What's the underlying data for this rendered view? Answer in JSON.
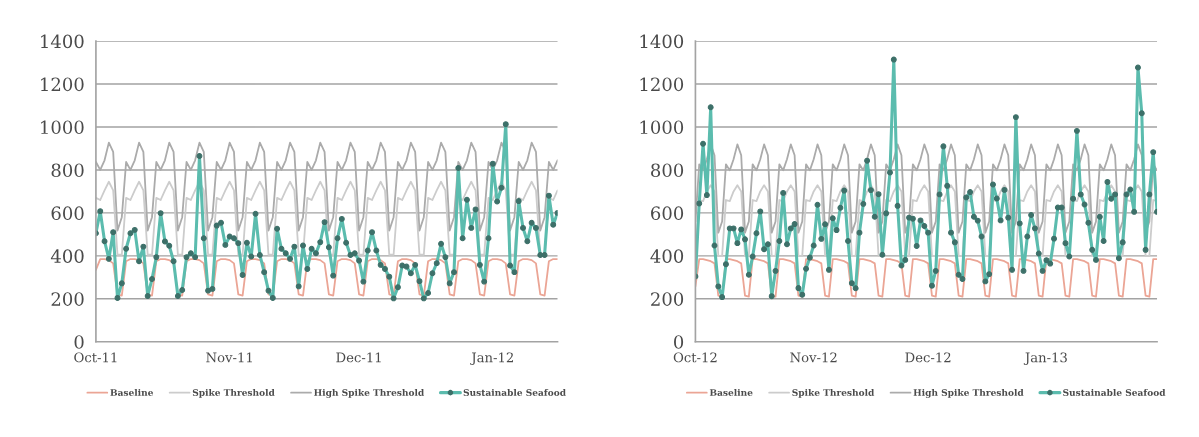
{
  "chart_data": [
    {
      "type": "line",
      "xlim": [
        "2011-10-01",
        "2012-01-16"
      ],
      "ylim": [
        0,
        1400
      ],
      "yticks": [
        0,
        200,
        400,
        600,
        800,
        1000,
        1200,
        1400
      ],
      "xticks": [
        {
          "value": "2011-10-01",
          "label": "Oct-11"
        },
        {
          "value": "2011-11-01",
          "label": "Nov-11"
        },
        {
          "value": "2011-12-01",
          "label": "Dec-11"
        },
        {
          "value": "2012-01-01",
          "label": "Jan-12"
        }
      ],
      "grid": "y",
      "legend": "bottom",
      "x": [
        "2011-10-01",
        "2011-10-02",
        "2011-10-03",
        "2011-10-04",
        "2011-10-05",
        "2011-10-06",
        "2011-10-07",
        "2011-10-08",
        "2011-10-09",
        "2011-10-10",
        "2011-10-11",
        "2011-10-12",
        "2011-10-13",
        "2011-10-14",
        "2011-10-15",
        "2011-10-16",
        "2011-10-17",
        "2011-10-18",
        "2011-10-19",
        "2011-10-20",
        "2011-10-21",
        "2011-10-22",
        "2011-10-23",
        "2011-10-24",
        "2011-10-25",
        "2011-10-26",
        "2011-10-27",
        "2011-10-28",
        "2011-10-29",
        "2011-10-30",
        "2011-10-31",
        "2011-11-01",
        "2011-11-02",
        "2011-11-03",
        "2011-11-04",
        "2011-11-05",
        "2011-11-06",
        "2011-11-07",
        "2011-11-08",
        "2011-11-09",
        "2011-11-10",
        "2011-11-11",
        "2011-11-12",
        "2011-11-13",
        "2011-11-14",
        "2011-11-15",
        "2011-11-16",
        "2011-11-17",
        "2011-11-18",
        "2011-11-19",
        "2011-11-20",
        "2011-11-21",
        "2011-11-22",
        "2011-11-23",
        "2011-11-24",
        "2011-11-25",
        "2011-11-26",
        "2011-11-27",
        "2011-11-28",
        "2011-11-29",
        "2011-11-30",
        "2011-12-01",
        "2011-12-02",
        "2011-12-03",
        "2011-12-04",
        "2011-12-05",
        "2011-12-06",
        "2011-12-07",
        "2011-12-08",
        "2011-12-09",
        "2011-12-10",
        "2011-12-11",
        "2011-12-12",
        "2011-12-13",
        "2011-12-14",
        "2011-12-15",
        "2011-12-16",
        "2011-12-17",
        "2011-12-18",
        "2011-12-19",
        "2011-12-20",
        "2011-12-21",
        "2011-12-22",
        "2011-12-23",
        "2011-12-24",
        "2011-12-25",
        "2011-12-26",
        "2011-12-27",
        "2011-12-28",
        "2011-12-29",
        "2011-12-30",
        "2011-12-31",
        "2012-01-01",
        "2012-01-02",
        "2012-01-03",
        "2012-01-04",
        "2012-01-05",
        "2012-01-06",
        "2012-01-07",
        "2012-01-08",
        "2012-01-09",
        "2012-01-10",
        "2012-01-11",
        "2012-01-12",
        "2012-01-13",
        "2012-01-14",
        "2012-01-15",
        "2012-01-16"
      ],
      "series": [
        {
          "name": "Baseline",
          "color": "#eba595",
          "marker": "none",
          "values": [
            335,
            385,
            385,
            380,
            365,
            220,
            215,
            375,
            385,
            385,
            380,
            365,
            220,
            215,
            375,
            385,
            385,
            380,
            365,
            220,
            215,
            375,
            385,
            385,
            380,
            365,
            220,
            215,
            375,
            385,
            385,
            380,
            365,
            220,
            215,
            375,
            385,
            385,
            380,
            365,
            220,
            215,
            375,
            385,
            385,
            380,
            365,
            220,
            215,
            375,
            385,
            385,
            380,
            365,
            220,
            215,
            375,
            385,
            385,
            380,
            365,
            220,
            215,
            375,
            385,
            385,
            380,
            365,
            220,
            215,
            375,
            385,
            385,
            380,
            365,
            220,
            215,
            375,
            385,
            385,
            380,
            365,
            220,
            215,
            375,
            385,
            385,
            380,
            365,
            220,
            215,
            375,
            385,
            385,
            380,
            365,
            220,
            215,
            375,
            385,
            385,
            380,
            365,
            220,
            215,
            375,
            385,
            385
          ]
        },
        {
          "name": "Spike Threshold",
          "color": "#cccccc",
          "marker": "none",
          "values": [
            670,
            660,
            705,
            745,
            705,
            405,
            405,
            670,
            660,
            705,
            745,
            705,
            405,
            405,
            670,
            660,
            705,
            745,
            705,
            405,
            405,
            670,
            660,
            705,
            745,
            705,
            405,
            405,
            670,
            660,
            705,
            745,
            705,
            405,
            405,
            670,
            660,
            705,
            745,
            705,
            405,
            405,
            670,
            660,
            705,
            745,
            705,
            405,
            405,
            670,
            660,
            705,
            745,
            705,
            405,
            405,
            670,
            660,
            705,
            745,
            705,
            405,
            405,
            670,
            660,
            705,
            745,
            705,
            405,
            405,
            670,
            660,
            705,
            745,
            705,
            405,
            405,
            670,
            660,
            705,
            745,
            705,
            405,
            405,
            670,
            660,
            705,
            745,
            705,
            405,
            405,
            670,
            660,
            705,
            745,
            705,
            405,
            405,
            670,
            660,
            705,
            745,
            705,
            405,
            405,
            670,
            660,
            705
          ]
        },
        {
          "name": "High Spike Threshold",
          "color": "#ababab",
          "marker": "none",
          "values": [
            837,
            800,
            845,
            927,
            884,
            518,
            580,
            837,
            800,
            845,
            927,
            884,
            518,
            580,
            837,
            800,
            845,
            927,
            884,
            518,
            580,
            837,
            800,
            845,
            927,
            884,
            518,
            580,
            837,
            800,
            845,
            927,
            884,
            518,
            580,
            837,
            800,
            845,
            927,
            884,
            518,
            580,
            837,
            800,
            845,
            927,
            884,
            518,
            580,
            837,
            800,
            845,
            927,
            884,
            518,
            580,
            837,
            800,
            845,
            927,
            884,
            518,
            580,
            837,
            800,
            845,
            927,
            884,
            518,
            580,
            837,
            800,
            845,
            927,
            884,
            518,
            580,
            837,
            800,
            845,
            927,
            884,
            518,
            580,
            837,
            800,
            845,
            927,
            884,
            518,
            580,
            837,
            800,
            845,
            927,
            884,
            518,
            580,
            837,
            800,
            845,
            927,
            884,
            518,
            580,
            837,
            800,
            845
          ]
        },
        {
          "name": "Sustainable Seafood",
          "color": "#5bbcae",
          "marker": "circle",
          "values": [
            505,
            608,
            468,
            386,
            510,
            204,
            272,
            433,
            505,
            521,
            375,
            443,
            213,
            292,
            394,
            599,
            467,
            447,
            375,
            213,
            241,
            394,
            412,
            394,
            865,
            482,
            238,
            246,
            541,
            554,
            451,
            490,
            482,
            459,
            311,
            461,
            397,
            596,
            404,
            324,
            238,
            204,
            526,
            433,
            412,
            386,
            443,
            258,
            448,
            339,
            433,
            412,
            464,
            557,
            440,
            308,
            482,
            572,
            461,
            404,
            412,
            378,
            280,
            425,
            510,
            425,
            358,
            339,
            303,
            202,
            254,
            355,
            350,
            319,
            358,
            282,
            202,
            227,
            319,
            366,
            456,
            394,
            272,
            324,
            809,
            482,
            661,
            530,
            616,
            358,
            280,
            482,
            829,
            653,
            717,
            1013,
            355,
            324,
            655,
            530,
            468,
            554,
            530,
            404,
            404,
            680,
            545,
            600
          ]
        }
      ]
    },
    {
      "type": "line",
      "xlim": [
        "2012-10-01",
        "2013-01-30"
      ],
      "ylim": [
        0,
        1400
      ],
      "yticks": [
        0,
        200,
        400,
        600,
        800,
        1000,
        1200,
        1400
      ],
      "xticks": [
        {
          "value": "2012-10-01",
          "label": "Oct-12"
        },
        {
          "value": "2012-11-01",
          "label": "Nov-12"
        },
        {
          "value": "2012-12-01",
          "label": "Dec-12"
        },
        {
          "value": "2013-01-01",
          "label": "Jan-13"
        }
      ],
      "grid": "y",
      "legend": "bottom",
      "x": [
        "2012-10-01",
        "2012-10-02",
        "2012-10-03",
        "2012-10-04",
        "2012-10-05",
        "2012-10-06",
        "2012-10-07",
        "2012-10-08",
        "2012-10-09",
        "2012-10-10",
        "2012-10-11",
        "2012-10-12",
        "2012-10-13",
        "2012-10-14",
        "2012-10-15",
        "2012-10-16",
        "2012-10-17",
        "2012-10-18",
        "2012-10-19",
        "2012-10-20",
        "2012-10-21",
        "2012-10-22",
        "2012-10-23",
        "2012-10-24",
        "2012-10-25",
        "2012-10-26",
        "2012-10-27",
        "2012-10-28",
        "2012-10-29",
        "2012-10-30",
        "2012-10-31",
        "2012-11-01",
        "2012-11-02",
        "2012-11-03",
        "2012-11-04",
        "2012-11-05",
        "2012-11-06",
        "2012-11-07",
        "2012-11-08",
        "2012-11-09",
        "2012-11-10",
        "2012-11-11",
        "2012-11-12",
        "2012-11-13",
        "2012-11-14",
        "2012-11-15",
        "2012-11-16",
        "2012-11-17",
        "2012-11-18",
        "2012-11-19",
        "2012-11-20",
        "2012-11-21",
        "2012-11-22",
        "2012-11-23",
        "2012-11-24",
        "2012-11-25",
        "2012-11-26",
        "2012-11-27",
        "2012-11-28",
        "2012-11-29",
        "2012-11-30",
        "2012-12-01",
        "2012-12-02",
        "2012-12-03",
        "2012-12-04",
        "2012-12-05",
        "2012-12-06",
        "2012-12-07",
        "2012-12-08",
        "2012-12-09",
        "2012-12-10",
        "2012-12-11",
        "2012-12-12",
        "2012-12-13",
        "2012-12-14",
        "2012-12-15",
        "2012-12-16",
        "2012-12-17",
        "2012-12-18",
        "2012-12-19",
        "2012-12-20",
        "2012-12-21",
        "2012-12-22",
        "2012-12-23",
        "2012-12-24",
        "2012-12-25",
        "2012-12-26",
        "2012-12-27",
        "2012-12-28",
        "2012-12-29",
        "2012-12-30",
        "2012-12-31",
        "2013-01-01",
        "2013-01-02",
        "2013-01-03",
        "2013-01-04",
        "2013-01-05",
        "2013-01-06",
        "2013-01-07",
        "2013-01-08",
        "2013-01-09",
        "2013-01-10",
        "2013-01-11",
        "2013-01-12",
        "2013-01-13",
        "2013-01-14",
        "2013-01-15",
        "2013-01-16",
        "2013-01-17",
        "2013-01-18",
        "2013-01-19",
        "2013-01-20",
        "2013-01-21",
        "2013-01-22",
        "2013-01-23",
        "2013-01-24",
        "2013-01-25",
        "2013-01-26",
        "2013-01-27",
        "2013-01-28",
        "2013-01-29",
        "2013-01-30"
      ],
      "series": [
        {
          "name": "Baseline",
          "color": "#eba595",
          "marker": "none",
          "values": [
            258,
            385,
            385,
            380,
            375,
            365,
            215,
            210,
            385,
            385,
            380,
            375,
            365,
            215,
            210,
            385,
            385,
            380,
            375,
            365,
            215,
            210,
            385,
            385,
            380,
            375,
            365,
            215,
            210,
            385,
            385,
            380,
            375,
            365,
            215,
            210,
            385,
            385,
            380,
            375,
            365,
            215,
            210,
            385,
            385,
            380,
            375,
            365,
            215,
            210,
            385,
            385,
            380,
            375,
            365,
            215,
            210,
            385,
            385,
            380,
            375,
            365,
            215,
            210,
            385,
            385,
            380,
            375,
            365,
            215,
            210,
            385,
            385,
            380,
            375,
            365,
            215,
            210,
            385,
            385,
            380,
            375,
            365,
            215,
            210,
            385,
            385,
            380,
            375,
            365,
            215,
            210,
            385,
            385,
            380,
            375,
            365,
            215,
            210,
            385,
            385,
            380,
            375,
            365,
            215,
            210,
            385,
            385,
            380,
            375,
            365,
            215,
            210,
            385,
            385,
            380,
            375,
            365,
            215,
            210,
            385,
            385
          ]
        },
        {
          "name": "Spike Threshold",
          "color": "#cccccc",
          "marker": "none",
          "values": [
            400,
            660,
            655,
            700,
            729,
            700,
            400,
            400,
            660,
            655,
            700,
            729,
            700,
            400,
            400,
            660,
            655,
            700,
            729,
            700,
            400,
            400,
            660,
            655,
            700,
            729,
            700,
            400,
            400,
            660,
            655,
            700,
            729,
            700,
            400,
            400,
            660,
            655,
            700,
            729,
            700,
            400,
            400,
            660,
            655,
            700,
            729,
            700,
            400,
            400,
            660,
            655,
            700,
            729,
            700,
            400,
            400,
            660,
            655,
            700,
            729,
            700,
            400,
            400,
            660,
            655,
            700,
            729,
            700,
            400,
            400,
            660,
            655,
            700,
            729,
            700,
            400,
            400,
            660,
            655,
            700,
            729,
            700,
            400,
            400,
            660,
            655,
            700,
            729,
            700,
            400,
            400,
            660,
            655,
            700,
            729,
            700,
            400,
            400,
            660,
            655,
            700,
            729,
            700,
            400,
            400,
            660,
            655,
            700,
            729,
            700,
            400,
            400,
            660,
            655,
            700,
            729,
            700,
            400,
            400,
            660,
            655
          ]
        },
        {
          "name": "High Spike Threshold",
          "color": "#ababab",
          "marker": "none",
          "values": [
            560,
            826,
            798,
            850,
            919,
            868,
            508,
            560,
            826,
            798,
            850,
            919,
            868,
            508,
            560,
            826,
            798,
            850,
            919,
            868,
            508,
            560,
            826,
            798,
            850,
            919,
            868,
            508,
            560,
            826,
            798,
            850,
            919,
            868,
            508,
            560,
            826,
            798,
            850,
            919,
            868,
            508,
            560,
            826,
            798,
            850,
            919,
            868,
            508,
            560,
            826,
            798,
            850,
            919,
            868,
            508,
            560,
            826,
            798,
            850,
            919,
            868,
            508,
            560,
            826,
            798,
            850,
            919,
            868,
            508,
            560,
            826,
            798,
            850,
            919,
            868,
            508,
            560,
            826,
            798,
            850,
            919,
            868,
            508,
            560,
            826,
            798,
            850,
            919,
            868,
            508,
            560,
            826,
            798,
            850,
            919,
            868,
            508,
            560,
            826,
            798,
            850,
            919,
            868,
            508,
            560,
            826,
            798,
            850,
            919,
            868,
            508,
            560,
            826,
            798,
            850,
            919,
            868,
            508,
            560,
            826,
            798
          ]
        },
        {
          "name": "Sustainable Seafood",
          "color": "#5bbcae",
          "marker": "circle",
          "values": [
            304,
            644,
            922,
            683,
            1092,
            448,
            258,
            208,
            361,
            528,
            528,
            459,
            523,
            477,
            312,
            397,
            505,
            607,
            431,
            454,
            212,
            330,
            469,
            693,
            454,
            528,
            548,
            250,
            219,
            340,
            392,
            448,
            638,
            479,
            547,
            335,
            575,
            520,
            624,
            704,
            469,
            273,
            249,
            508,
            642,
            843,
            706,
            582,
            687,
            405,
            598,
            788,
            1314,
            633,
            355,
            381,
            578,
            573,
            446,
            565,
            539,
            508,
            261,
            330,
            686,
            910,
            726,
            508,
            463,
            312,
            292,
            672,
            697,
            582,
            564,
            490,
            281,
            315,
            732,
            667,
            565,
            707,
            578,
            335,
            1046,
            551,
            330,
            490,
            590,
            528,
            411,
            330,
            380,
            364,
            480,
            625,
            625,
            459,
            397,
            666,
            982,
            686,
            639,
            554,
            428,
            381,
            582,
            469,
            744,
            666,
            686,
            389,
            463,
            686,
            709,
            605,
            1277,
            1064,
            428,
            686,
            883,
            605
          ]
        }
      ]
    }
  ]
}
